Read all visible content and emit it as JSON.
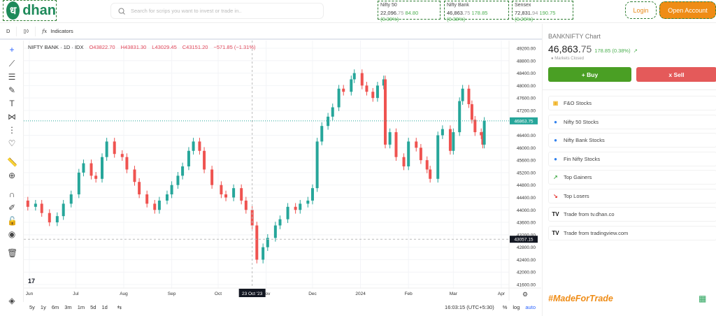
{
  "header": {
    "logo_glyph": "ध",
    "logo_text": "dhan",
    "search_placeholder": "Search for scrips you want to invest or trade in..",
    "indices": [
      {
        "name": "Nifty 50",
        "value_main": "22,096.",
        "value_dec": "75",
        "change": "84.80 (0.39%)"
      },
      {
        "name": "Nifty Bank",
        "value_main": "46,863.",
        "value_dec": "75",
        "change": "178.85 (0.38%)"
      },
      {
        "name": "Sensex",
        "value_main": "72,831.",
        "value_dec": "94",
        "change": "190.75 (0.26%)"
      }
    ],
    "login": "Login",
    "open_account": "Open Account"
  },
  "toolbar": {
    "interval": "D",
    "indicators": "Indicators"
  },
  "legend": {
    "symbol": "NIFTY BANK · 1D · IDX",
    "o": "O43822.70",
    "h": "H43831.30",
    "l": "L43029.45",
    "c": "C43151.20",
    "chg": "−571.85 (−1.31%)"
  },
  "bottom": {
    "ranges": [
      "5y",
      "1y",
      "6m",
      "3m",
      "1m",
      "5d",
      "1d"
    ],
    "time": "16:03:15 (UTC+5:30)",
    "pct": "%",
    "log": "log",
    "auto": "auto"
  },
  "right": {
    "title": "BANKNIFTY Chart",
    "price_main": "46,863.",
    "price_dec": "75",
    "change": "178.85 (0.38%)",
    "status": "Markets Closed",
    "buy": "+ Buy",
    "sell": "x  Sell",
    "items": [
      {
        "label": "F&O Stocks",
        "icon": "fo-icon"
      },
      {
        "label": "Nifty 50 Stocks",
        "icon": "nifty50-icon"
      },
      {
        "label": "Nifty Bank Stocks",
        "icon": "niftybank-icon"
      },
      {
        "label": "Fin Nifty Stocks",
        "icon": "finnifty-icon"
      },
      {
        "label": "Top Gainers",
        "icon": "trend-up-icon"
      },
      {
        "label": "Top Losers",
        "icon": "trend-down-icon"
      },
      {
        "label": "Trade from tv.dhan.co",
        "icon": "tradingview-icon"
      },
      {
        "label": "Trade from tradingview.com",
        "icon": "tradingview-icon"
      }
    ],
    "tagline": "#MadeForTrade"
  },
  "colors": {
    "up": "#26a69a",
    "down": "#ef5350",
    "brand": "#1e8a5a",
    "accent": "#ef8c16"
  },
  "chart_data": {
    "type": "candlestick",
    "x_ticks": [
      "Jun",
      "Jul",
      "Aug",
      "Sep",
      "Oct",
      "Nov",
      "Dec",
      "2024",
      "Feb",
      "Mar",
      "Apr"
    ],
    "y_ticks": [
      49200,
      48800,
      48400,
      48000,
      47600,
      47200,
      46400,
      46000,
      45600,
      45200,
      44800,
      44400,
      44000,
      43600,
      43200,
      42800,
      42400,
      42000,
      41600
    ],
    "ylim": [
      41600,
      49200
    ],
    "last_price": "46863.75",
    "crosshair_price": "43057.15",
    "crosshair_date": "23 Oct '23",
    "series": [
      [
        "2023-05-26",
        44300
      ],
      [
        "2023-05-31",
        44100
      ],
      [
        "2023-06-05",
        44200
      ],
      [
        "2023-06-09",
        43900
      ],
      [
        "2023-06-14",
        43600
      ],
      [
        "2023-06-19",
        43800
      ],
      [
        "2023-06-23",
        44200
      ],
      [
        "2023-06-28",
        44500
      ],
      [
        "2023-07-03",
        45200
      ],
      [
        "2023-07-06",
        45500
      ],
      [
        "2023-07-11",
        45100
      ],
      [
        "2023-07-14",
        45000
      ],
      [
        "2023-07-18",
        45700
      ],
      [
        "2023-07-21",
        46200
      ],
      [
        "2023-07-26",
        45800
      ],
      [
        "2023-07-31",
        45700
      ],
      [
        "2023-08-03",
        45300
      ],
      [
        "2023-08-08",
        44900
      ],
      [
        "2023-08-11",
        44500
      ],
      [
        "2023-08-16",
        44200
      ],
      [
        "2023-08-21",
        44000
      ],
      [
        "2023-08-24",
        44300
      ],
      [
        "2023-08-29",
        44500
      ],
      [
        "2023-09-01",
        44800
      ],
      [
        "2023-09-05",
        45100
      ],
      [
        "2023-09-08",
        45400
      ],
      [
        "2023-09-12",
        45900
      ],
      [
        "2023-09-15",
        46200
      ],
      [
        "2023-09-19",
        45900
      ],
      [
        "2023-09-22",
        45300
      ],
      [
        "2023-09-27",
        44800
      ],
      [
        "2023-10-03",
        44500
      ],
      [
        "2023-10-06",
        44400
      ],
      [
        "2023-10-11",
        44700
      ],
      [
        "2023-10-16",
        44300
      ],
      [
        "2023-10-19",
        44000
      ],
      [
        "2023-10-23",
        43500
      ],
      [
        "2023-10-26",
        42400
      ],
      [
        "2023-10-30",
        42800
      ],
      [
        "2023-11-02",
        43100
      ],
      [
        "2023-11-07",
        43500
      ],
      [
        "2023-11-10",
        43700
      ],
      [
        "2023-11-15",
        44100
      ],
      [
        "2023-11-20",
        44000
      ],
      [
        "2023-11-23",
        44200
      ],
      [
        "2023-11-28",
        44300
      ],
      [
        "2023-12-01",
        44700
      ],
      [
        "2023-12-04",
        46200
      ],
      [
        "2023-12-07",
        46700
      ],
      [
        "2023-12-11",
        47000
      ],
      [
        "2023-12-14",
        47300
      ],
      [
        "2023-12-18",
        47900
      ],
      [
        "2023-12-21",
        47800
      ],
      [
        "2023-12-26",
        48200
      ],
      [
        "2023-12-28",
        48400
      ],
      [
        "2024-01-02",
        48000
      ],
      [
        "2024-01-05",
        47800
      ],
      [
        "2024-01-09",
        47600
      ],
      [
        "2024-01-12",
        48000
      ],
      [
        "2024-01-16",
        48200
      ],
      [
        "2024-01-17",
        46100
      ],
      [
        "2024-01-20",
        46500
      ],
      [
        "2024-01-24",
        45700
      ],
      [
        "2024-01-29",
        45400
      ],
      [
        "2024-02-01",
        46200
      ],
      [
        "2024-02-06",
        46000
      ],
      [
        "2024-02-09",
        45600
      ],
      [
        "2024-02-13",
        45300
      ],
      [
        "2024-02-15",
        45000
      ],
      [
        "2024-02-20",
        46400
      ],
      [
        "2024-02-23",
        46600
      ],
      [
        "2024-02-28",
        45900
      ],
      [
        "2024-03-01",
        46500
      ],
      [
        "2024-03-05",
        47500
      ],
      [
        "2024-03-07",
        47900
      ],
      [
        "2024-03-11",
        47400
      ],
      [
        "2024-03-13",
        46900
      ],
      [
        "2024-03-15",
        46500
      ],
      [
        "2024-03-19",
        46400
      ],
      [
        "2024-03-20",
        46100
      ],
      [
        "2024-03-21",
        46863.75
      ]
    ]
  }
}
